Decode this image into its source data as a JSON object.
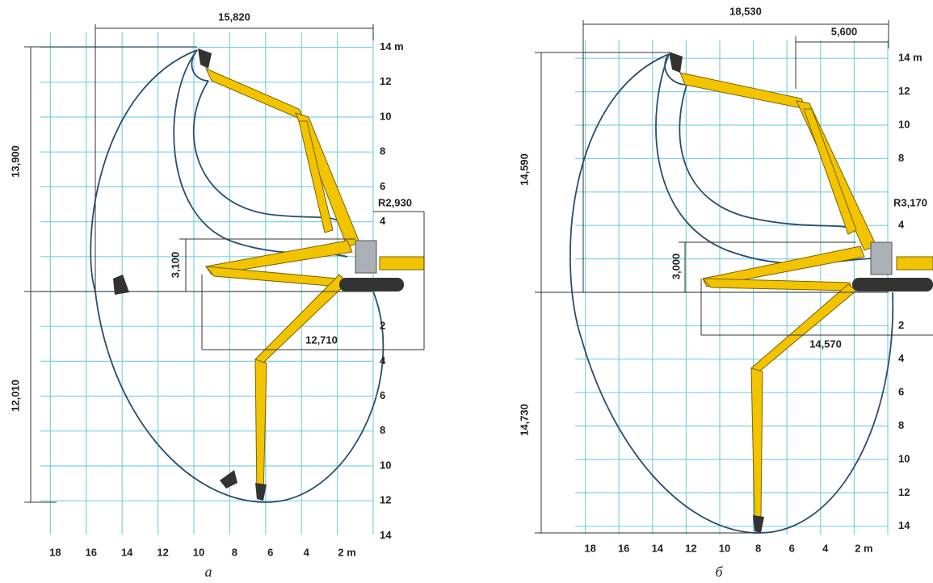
{
  "panels": [
    {
      "caption": "a",
      "dimensions": {
        "reach": "15,820",
        "height": "13,900",
        "depth": "12,010",
        "radius": "R2,930",
        "low_height": "3,100",
        "low_reach": "12,710"
      },
      "y_labels_up": [
        "14 m",
        "12",
        "10",
        "8",
        "6",
        "4"
      ],
      "y_labels_down": [
        "2",
        "4",
        "6",
        "8",
        "10",
        "12",
        "14"
      ],
      "x_labels": [
        "18",
        "16",
        "14",
        "12",
        "10",
        "8",
        "6",
        "4",
        "2 m"
      ]
    },
    {
      "caption": "б",
      "dimensions": {
        "reach": "18,530",
        "offset": "5,600",
        "height": "14,590",
        "depth": "14,730",
        "radius": "R3,170",
        "low_height": "3,000",
        "low_reach": "14,570"
      },
      "y_labels_up": [
        "14 m",
        "12",
        "10",
        "8",
        "4"
      ],
      "y_labels_down": [
        "2",
        "4",
        "6",
        "8",
        "10",
        "12",
        "14"
      ],
      "x_labels": [
        "18",
        "16",
        "14",
        "12",
        "10",
        "8",
        "6",
        "4",
        "2 m"
      ]
    }
  ]
}
